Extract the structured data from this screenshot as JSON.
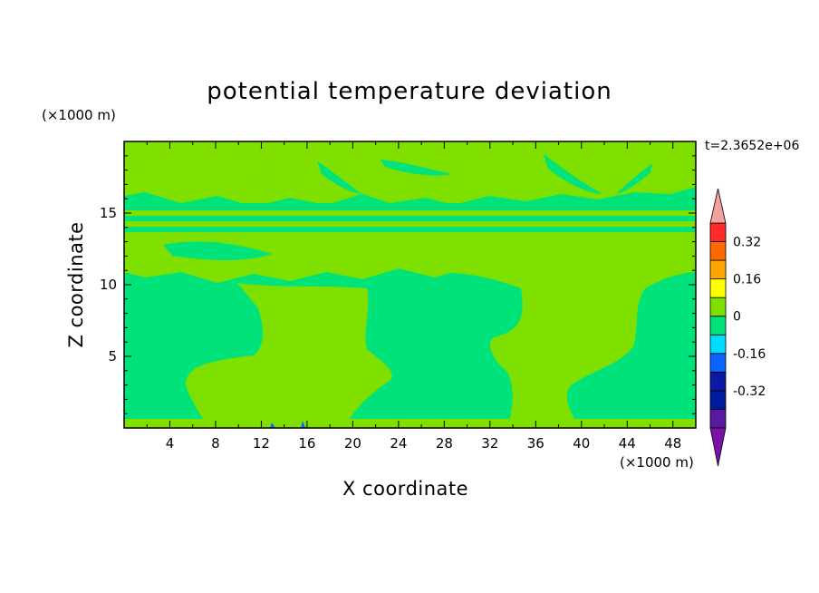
{
  "chart_data": {
    "type": "heatmap",
    "title": "potential temperature deviation",
    "xlabel": "X coordinate",
    "ylabel": "Z coordinate",
    "x_unit": "(×1000 m)",
    "y_unit": "(×1000 m)",
    "time_label": "t=2.3652e+06",
    "xlim": [
      0,
      50
    ],
    "ylim": [
      0,
      20
    ],
    "x_ticks": [
      "4",
      "8",
      "12",
      "16",
      "20",
      "24",
      "28",
      "32",
      "36",
      "40",
      "44",
      "48"
    ],
    "y_ticks": [
      "5",
      "10",
      "15"
    ],
    "colorbar": {
      "levels": [
        -0.4,
        -0.32,
        -0.24,
        -0.16,
        -0.08,
        0,
        0.08,
        0.16,
        0.24,
        0.32,
        0.4
      ],
      "colors": [
        "#5a1a9e",
        "#001a9e",
        "#0a1aa6",
        "#0a64ff",
        "#00dcff",
        "#00e37a",
        "#7fe000",
        "#ffff00",
        "#ffa500",
        "#ff6a00",
        "#ff2a2a"
      ],
      "under_color": "#7a12a8",
      "over_color": "#f2a0a0",
      "labels": [
        "-0.32",
        "-0.16",
        "0",
        "0.16",
        "0.32"
      ]
    },
    "field_colors": {
      "negative_small": "#00e37a",
      "positive_small": "#7fe000",
      "negative_trace": "#0a64ff"
    },
    "field_description_values": {
      "plumes_x_centers": [
        16,
        37
      ],
      "plume_top_z": 10,
      "layer_band_z": [
        13.5,
        15.5
      ]
    }
  }
}
